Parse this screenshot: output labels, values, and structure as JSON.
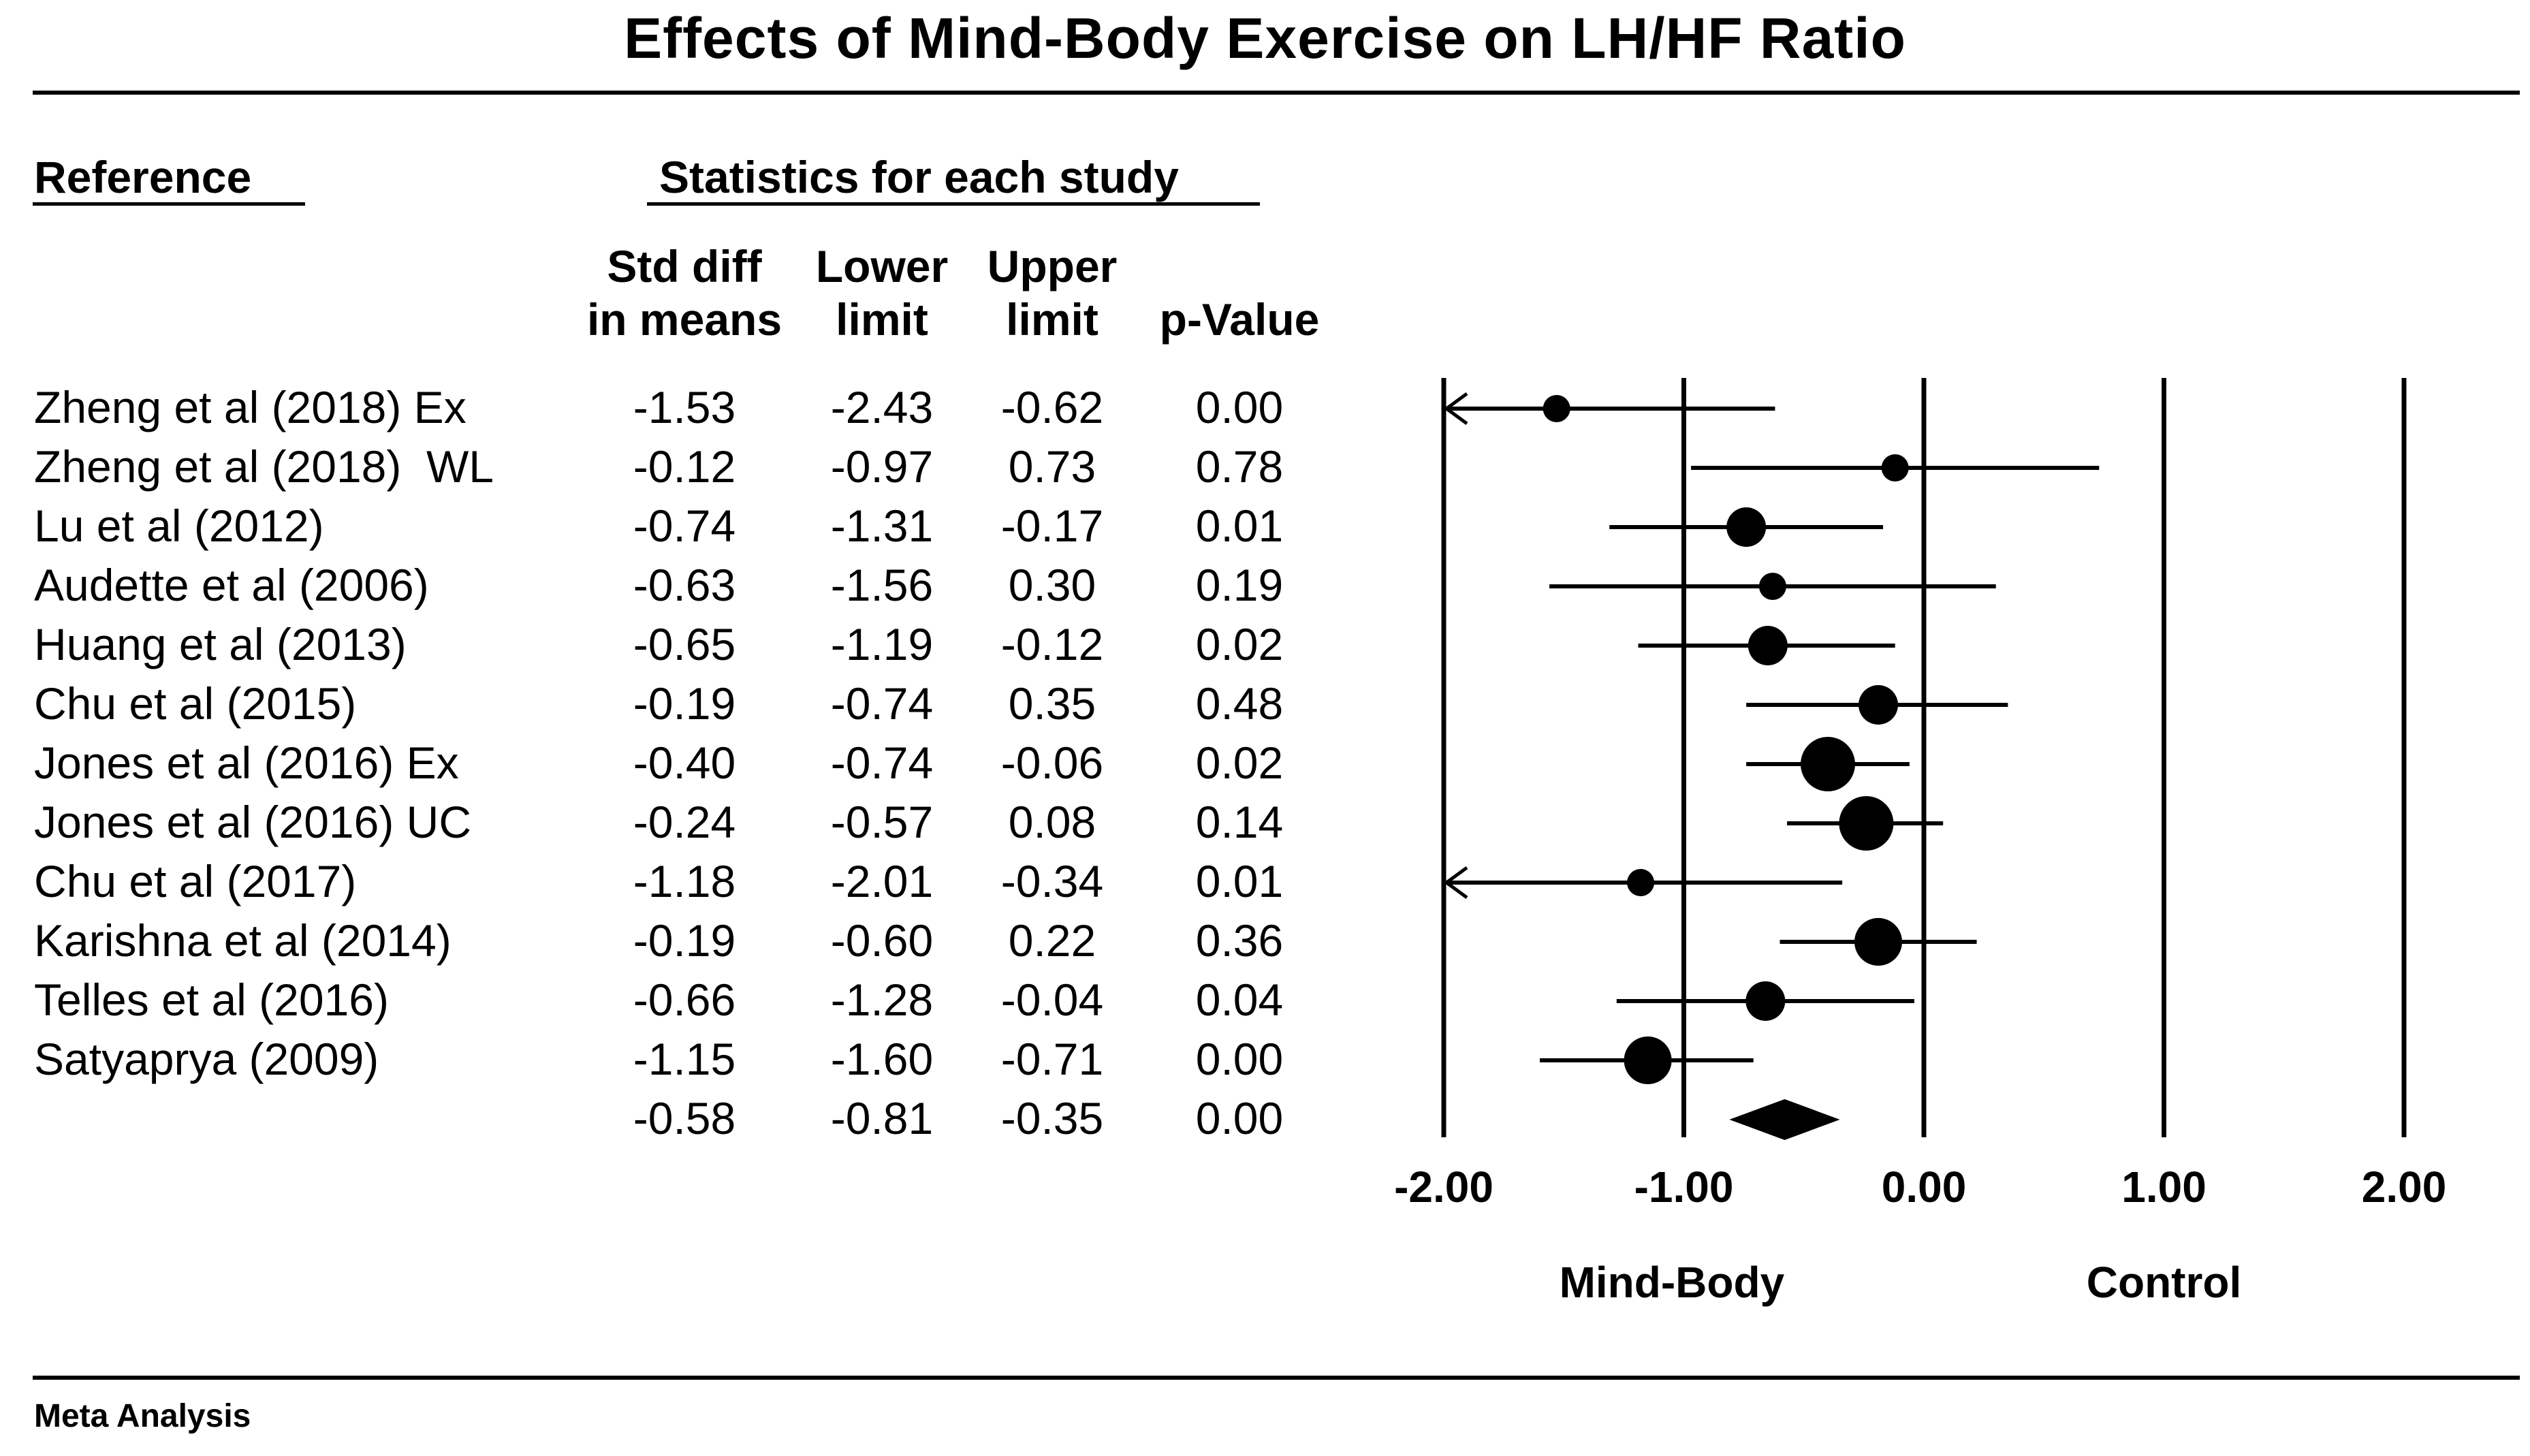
{
  "title": "Effects of Mind-Body Exercise on LH/HF Ratio",
  "headers": {
    "reference": "Reference",
    "statistics": "Statistics for each study",
    "std_diff_line1": "Std diff",
    "std_diff_line2": "in means",
    "lower_line1": "Lower",
    "lower_line2": "limit",
    "upper_line1": "Upper",
    "upper_line2": "limit",
    "pvalue": "p-Value"
  },
  "footer": "Meta Analysis",
  "chart_data": {
    "type": "forest",
    "title": "Effects of Mind-Body Exercise on LH/HF Ratio",
    "xlim": [
      -2.0,
      2.0
    ],
    "xticks": [
      "-2.00",
      "-1.00",
      "0.00",
      "1.00",
      "2.00"
    ],
    "xtick_values": [
      -2,
      -1,
      0,
      1,
      2
    ],
    "left_label": "Mind-Body",
    "right_label": "Control",
    "studies": [
      {
        "name": "Zheng et al (2018) Ex",
        "smd": "-1.53",
        "lower": "-2.43",
        "upper": "-0.62",
        "p": "0.00",
        "v": -1.53,
        "lo": -2.43,
        "hi": -0.62,
        "weight": 1
      },
      {
        "name": "Zheng et al (2018)  WL",
        "smd": "-0.12",
        "lower": "-0.97",
        "upper": "0.73",
        "p": "0.78",
        "v": -0.12,
        "lo": -0.97,
        "hi": 0.73,
        "weight": 1
      },
      {
        "name": "Lu et al (2012)",
        "smd": "-0.74",
        "lower": "-1.31",
        "upper": "-0.17",
        "p": "0.01",
        "v": -0.74,
        "lo": -1.31,
        "hi": -0.17,
        "weight": 3
      },
      {
        "name": "Audette et al (2006)",
        "smd": "-0.63",
        "lower": "-1.56",
        "upper": "0.30",
        "p": "0.19",
        "v": -0.63,
        "lo": -1.56,
        "hi": 0.3,
        "weight": 1
      },
      {
        "name": "Huang et al (2013)",
        "smd": "-0.65",
        "lower": "-1.19",
        "upper": "-0.12",
        "p": "0.02",
        "v": -0.65,
        "lo": -1.19,
        "hi": -0.12,
        "weight": 3
      },
      {
        "name": "Chu et al (2015)",
        "smd": "-0.19",
        "lower": "-0.74",
        "upper": "0.35",
        "p": "0.48",
        "v": -0.19,
        "lo": -0.74,
        "hi": 0.35,
        "weight": 3
      },
      {
        "name": "Jones et al (2016) Ex",
        "smd": "-0.40",
        "lower": "-0.74",
        "upper": "-0.06",
        "p": "0.02",
        "v": -0.4,
        "lo": -0.74,
        "hi": -0.06,
        "weight": 5
      },
      {
        "name": "Jones et al (2016) UC",
        "smd": "-0.24",
        "lower": "-0.57",
        "upper": "0.08",
        "p": "0.14",
        "v": -0.24,
        "lo": -0.57,
        "hi": 0.08,
        "weight": 5
      },
      {
        "name": "Chu et al (2017)",
        "smd": "-1.18",
        "lower": "-2.01",
        "upper": "-0.34",
        "p": "0.01",
        "v": -1.18,
        "lo": -2.01,
        "hi": -0.34,
        "weight": 1
      },
      {
        "name": "Karishna et al (2014)",
        "smd": "-0.19",
        "lower": "-0.60",
        "upper": "0.22",
        "p": "0.36",
        "v": -0.19,
        "lo": -0.6,
        "hi": 0.22,
        "weight": 4
      },
      {
        "name": "Telles et al (2016)",
        "smd": "-0.66",
        "lower": "-1.28",
        "upper": "-0.04",
        "p": "0.04",
        "v": -0.66,
        "lo": -1.28,
        "hi": -0.04,
        "weight": 3
      },
      {
        "name": "Satyaprya (2009)",
        "smd": "-1.15",
        "lower": "-1.60",
        "upper": "-0.71",
        "p": "0.00",
        "v": -1.15,
        "lo": -1.6,
        "hi": -0.71,
        "weight": 4
      }
    ],
    "summary": {
      "smd": "-0.58",
      "lower": "-0.81",
      "upper": "-0.35",
      "p": "0.00",
      "v": -0.58,
      "lo": -0.81,
      "hi": -0.35
    }
  }
}
